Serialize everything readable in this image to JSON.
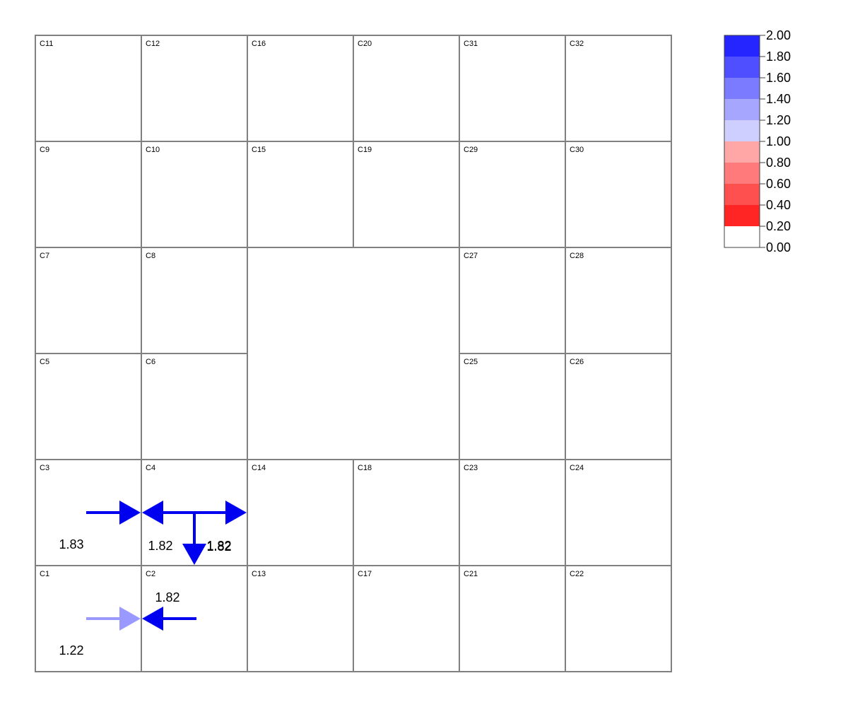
{
  "cells": [
    {
      "id": "C11",
      "col": 0,
      "row": 0,
      "w": 1,
      "h": 1
    },
    {
      "id": "C12",
      "col": 1,
      "row": 0,
      "w": 1,
      "h": 1
    },
    {
      "id": "C16",
      "col": 2,
      "row": 0,
      "w": 1,
      "h": 1
    },
    {
      "id": "C20",
      "col": 3,
      "row": 0,
      "w": 1,
      "h": 1
    },
    {
      "id": "C31",
      "col": 4,
      "row": 0,
      "w": 1,
      "h": 1
    },
    {
      "id": "C32",
      "col": 5,
      "row": 0,
      "w": 1,
      "h": 1
    },
    {
      "id": "C9",
      "col": 0,
      "row": 1,
      "w": 1,
      "h": 1
    },
    {
      "id": "C10",
      "col": 1,
      "row": 1,
      "w": 1,
      "h": 1
    },
    {
      "id": "C15",
      "col": 2,
      "row": 1,
      "w": 1,
      "h": 1
    },
    {
      "id": "C19",
      "col": 3,
      "row": 1,
      "w": 1,
      "h": 1
    },
    {
      "id": "C29",
      "col": 4,
      "row": 1,
      "w": 1,
      "h": 1
    },
    {
      "id": "C30",
      "col": 5,
      "row": 1,
      "w": 1,
      "h": 1
    },
    {
      "id": "C7",
      "col": 0,
      "row": 2,
      "w": 1,
      "h": 1
    },
    {
      "id": "C8",
      "col": 1,
      "row": 2,
      "w": 1,
      "h": 1
    },
    {
      "id": "",
      "col": 2,
      "row": 2,
      "w": 2,
      "h": 2
    },
    {
      "id": "C27",
      "col": 4,
      "row": 2,
      "w": 1,
      "h": 1
    },
    {
      "id": "C28",
      "col": 5,
      "row": 2,
      "w": 1,
      "h": 1
    },
    {
      "id": "C5",
      "col": 0,
      "row": 3,
      "w": 1,
      "h": 1
    },
    {
      "id": "C6",
      "col": 1,
      "row": 3,
      "w": 1,
      "h": 1
    },
    {
      "id": "C25",
      "col": 4,
      "row": 3,
      "w": 1,
      "h": 1
    },
    {
      "id": "C26",
      "col": 5,
      "row": 3,
      "w": 1,
      "h": 1
    },
    {
      "id": "C3",
      "col": 0,
      "row": 4,
      "w": 1,
      "h": 1
    },
    {
      "id": "C4",
      "col": 1,
      "row": 4,
      "w": 1,
      "h": 1
    },
    {
      "id": "C14",
      "col": 2,
      "row": 4,
      "w": 1,
      "h": 1
    },
    {
      "id": "C18",
      "col": 3,
      "row": 4,
      "w": 1,
      "h": 1
    },
    {
      "id": "C23",
      "col": 4,
      "row": 4,
      "w": 1,
      "h": 1
    },
    {
      "id": "C24",
      "col": 5,
      "row": 4,
      "w": 1,
      "h": 1
    },
    {
      "id": "C1",
      "col": 0,
      "row": 5,
      "w": 1,
      "h": 1
    },
    {
      "id": "C2",
      "col": 1,
      "row": 5,
      "w": 1,
      "h": 1
    },
    {
      "id": "C13",
      "col": 2,
      "row": 5,
      "w": 1,
      "h": 1
    },
    {
      "id": "C17",
      "col": 3,
      "row": 5,
      "w": 1,
      "h": 1
    },
    {
      "id": "C21",
      "col": 4,
      "row": 5,
      "w": 1,
      "h": 1
    },
    {
      "id": "C22",
      "col": 5,
      "row": 5,
      "w": 1,
      "h": 1
    }
  ],
  "flows": [
    {
      "from": "C3",
      "to": "C4",
      "value": 1.83,
      "label": "1.83"
    },
    {
      "from": "C4",
      "to": "C3",
      "value": 1.82,
      "label": "1.82"
    },
    {
      "from": "C4",
      "to": "C14",
      "value": 1.82,
      "label": "1.82"
    },
    {
      "from": "C4",
      "to": "C2",
      "value": 1.82,
      "label": "1.82"
    },
    {
      "from": "C1",
      "to": "C2",
      "value": 1.22,
      "label": "1.22"
    },
    {
      "from": "C2",
      "to": "C1",
      "value": 1.82,
      "label": "1.82"
    }
  ],
  "legend": {
    "ticks": [
      "2.00",
      "1.80",
      "1.60",
      "1.40",
      "1.20",
      "1.00",
      "0.80",
      "0.60",
      "0.40",
      "0.20",
      "0.00"
    ],
    "bands": [
      {
        "min": 1.8,
        "max": 2.0,
        "color": "#2525ff"
      },
      {
        "min": 1.6,
        "max": 1.8,
        "color": "#4f4fff"
      },
      {
        "min": 1.4,
        "max": 1.6,
        "color": "#7b7bff"
      },
      {
        "min": 1.2,
        "max": 1.4,
        "color": "#a6a6ff"
      },
      {
        "min": 1.0,
        "max": 1.2,
        "color": "#cfcfff"
      },
      {
        "min": 0.8,
        "max": 1.0,
        "color": "#ffa6a6"
      },
      {
        "min": 0.6,
        "max": 0.8,
        "color": "#ff7b7b"
      },
      {
        "min": 0.4,
        "max": 0.6,
        "color": "#ff5050"
      },
      {
        "min": 0.2,
        "max": 0.4,
        "color": "#ff2525"
      },
      {
        "min": 0.0,
        "max": 0.2,
        "color": "#ffffff"
      }
    ],
    "arrow_colors": [
      {
        "min": 1.8,
        "color": "#0000f0"
      },
      {
        "min": 1.2,
        "color": "#9999ff"
      }
    ]
  }
}
